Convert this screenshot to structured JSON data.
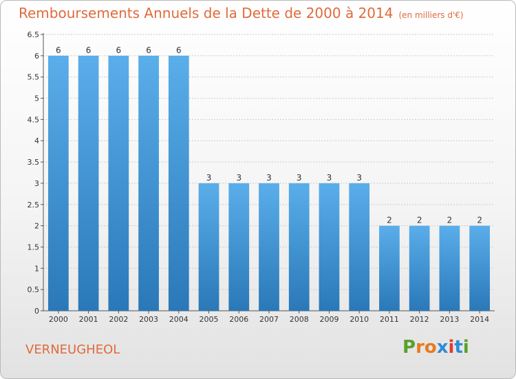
{
  "title": "Remboursements Annuels de la Dette de 2000 à 2014",
  "unit_note": "(en milliers d'€)",
  "commune": "VERNEUGHEOL",
  "logo": {
    "letters": [
      "P",
      "r",
      "o",
      "x",
      "i",
      "t",
      "i"
    ],
    "colors": [
      "#5aa02c",
      "#e87a1e",
      "#e87a1e",
      "#2e8bd8",
      "#e23b2e",
      "#2e8bd8",
      "#5aa02c"
    ]
  },
  "colors": {
    "title": "#e06a3c",
    "bar_top": "#5aaeea",
    "bar_bottom": "#2a78b8",
    "grid": "#cccccc"
  },
  "chart_data": {
    "type": "bar",
    "categories": [
      "2000",
      "2001",
      "2002",
      "2003",
      "2004",
      "2005",
      "2006",
      "2007",
      "2008",
      "2009",
      "2010",
      "2011",
      "2012",
      "2013",
      "2014"
    ],
    "values": [
      6,
      6,
      6,
      6,
      6,
      3,
      3,
      3,
      3,
      3,
      3,
      2,
      2,
      2,
      2
    ],
    "ylim": [
      0,
      6.5
    ],
    "yticks": [
      "0",
      "0.5",
      "1",
      "1.5",
      "2",
      "2.5",
      "3",
      "3.5",
      "4",
      "4.5",
      "5",
      "5.5",
      "6",
      "6.5"
    ],
    "grid": true,
    "legend": "none"
  }
}
